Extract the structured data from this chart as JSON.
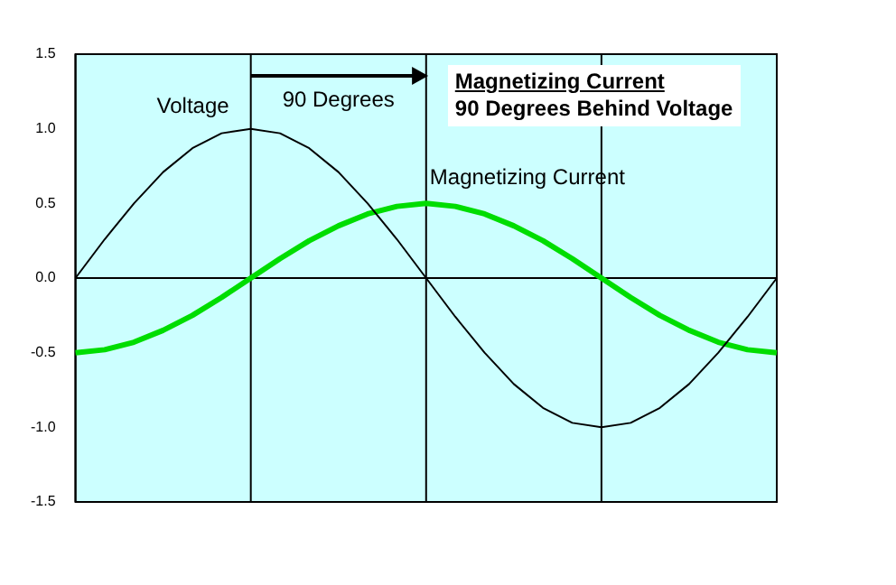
{
  "chart_data": {
    "type": "line",
    "annotations": [
      "90 Degrees",
      "Magnetizing Current",
      "90 Degrees Behind Voltage"
    ],
    "categories": [
      null,
      null,
      null,
      null,
      null,
      null,
      null,
      null,
      null,
      null,
      null,
      null,
      null,
      null,
      null,
      null,
      null,
      null,
      null,
      null,
      null,
      null,
      null,
      null,
      null
    ],
    "series": [
      {
        "name": "Voltage",
        "color": "#000000",
        "values": [
          0,
          0.26,
          0.5,
          0.71,
          0.87,
          0.97,
          1,
          0.97,
          0.87,
          0.71,
          0.5,
          0.26,
          0,
          -0.26,
          -0.5,
          -0.71,
          -0.87,
          -0.97,
          -1,
          -0.97,
          -0.87,
          -0.71,
          -0.5,
          -0.26,
          0
        ]
      },
      {
        "name": "Magnetizing Current",
        "color": "#00dd00",
        "values": [
          -0.5,
          -0.48,
          -0.43,
          -0.35,
          -0.25,
          -0.13,
          0,
          0.13,
          0.25,
          0.35,
          0.43,
          0.48,
          0.5,
          0.48,
          0.43,
          0.35,
          0.25,
          0.13,
          0,
          -0.13,
          -0.25,
          -0.35,
          -0.43,
          -0.48,
          -0.5
        ]
      }
    ],
    "ylim": [
      -1.5,
      1.5
    ],
    "yticks": [
      {
        "value": -1.5,
        "label": "-1.5"
      },
      {
        "value": -1,
        "label": "-1.0"
      },
      {
        "value": -0.5,
        "label": "-0.5"
      },
      {
        "value": 0,
        "label": "0.0"
      },
      {
        "value": 0.5,
        "label": "0.5"
      },
      {
        "value": 1,
        "label": "1.0"
      },
      {
        "value": 1.5,
        "label": "1.5"
      }
    ],
    "tick_labels": "y",
    "grid": "x",
    "legend": false,
    "marker": "none",
    "line_style": "solid",
    "ref_lines": [
      {
        "axis": "y",
        "value": 0,
        "color": "#000000"
      }
    ]
  }
}
